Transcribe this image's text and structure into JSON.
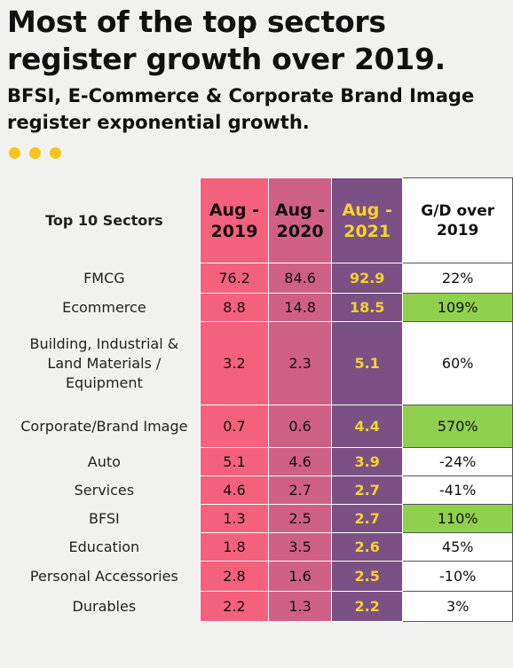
{
  "header": {
    "title": "Most of the top sectors register growth over 2019.",
    "subtitle": "BFSI, E-Commerce & Corporate Brand Image register exponential growth."
  },
  "colors": {
    "aug2019": "#f4617c",
    "aug2020": "#cf6085",
    "aug2021": "#7b5185",
    "aug2021_text": "#f8d22a",
    "highlight": "#8fd14f",
    "dots": "#f5c518"
  },
  "chart_data": {
    "type": "table",
    "columns": [
      "Top 10 Sectors",
      "Aug - 2019",
      "Aug - 2020",
      "Aug - 2021",
      "G/D over 2019"
    ],
    "rows": [
      {
        "sector": "FMCG",
        "aug2019": "76.2",
        "aug2020": "84.6",
        "aug2021": "92.9",
        "gd": "22%",
        "highlight": false
      },
      {
        "sector": "Ecommerce",
        "aug2019": "8.8",
        "aug2020": "14.8",
        "aug2021": "18.5",
        "gd": "109%",
        "highlight": true
      },
      {
        "sector": "Building, Industrial & Land Materials / Equipment",
        "aug2019": "3.2",
        "aug2020": "2.3",
        "aug2021": "5.1",
        "gd": "60%",
        "highlight": false
      },
      {
        "sector": "Corporate/Brand Image",
        "aug2019": "0.7",
        "aug2020": "0.6",
        "aug2021": "4.4",
        "gd": "570%",
        "highlight": true
      },
      {
        "sector": "Auto",
        "aug2019": "5.1",
        "aug2020": "4.6",
        "aug2021": "3.9",
        "gd": "-24%",
        "highlight": false
      },
      {
        "sector": "Services",
        "aug2019": "4.6",
        "aug2020": "2.7",
        "aug2021": "2.7",
        "gd": "-41%",
        "highlight": false
      },
      {
        "sector": "BFSI",
        "aug2019": "1.3",
        "aug2020": "2.5",
        "aug2021": "2.7",
        "gd": "110%",
        "highlight": true
      },
      {
        "sector": "Education",
        "aug2019": "1.8",
        "aug2020": "3.5",
        "aug2021": "2.6",
        "gd": "45%",
        "highlight": false
      },
      {
        "sector": "Personal Accessories",
        "aug2019": "2.8",
        "aug2020": "1.6",
        "aug2021": "2.5",
        "gd": "-10%",
        "highlight": false
      },
      {
        "sector": "Durables",
        "aug2019": "2.2",
        "aug2020": "1.3",
        "aug2021": "2.2",
        "gd": "3%",
        "highlight": false
      }
    ]
  }
}
